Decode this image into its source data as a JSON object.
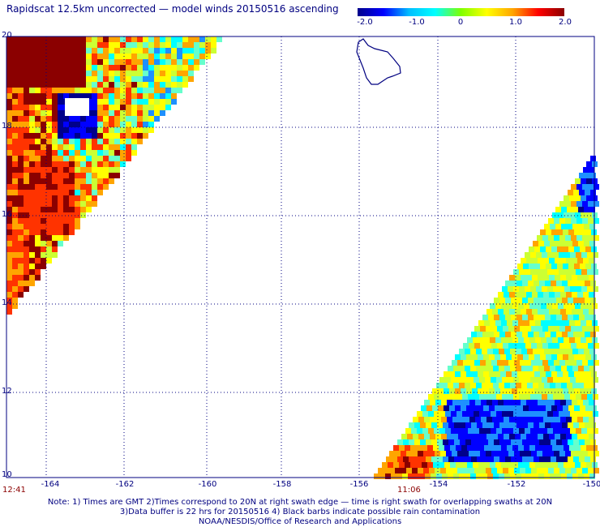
{
  "title": "Rapidscat 12.5km uncorrected — model winds 20150516 ascending",
  "colorbar": {
    "labels": [
      "-2.0",
      "-1.0",
      "0",
      "1.0",
      "2.0"
    ],
    "range": [
      -2.0,
      2.0
    ],
    "colors": [
      "#00008b",
      "#0000ff",
      "#00bfff",
      "#00ffff",
      "#7fff00",
      "#ffff00",
      "#ffa500",
      "#ff0000",
      "#8b0000"
    ]
  },
  "map": {
    "lat_range": [
      10,
      20
    ],
    "lon_range": [
      -165,
      -150
    ],
    "lat_labels": [
      "20",
      "18",
      "16",
      "14",
      "12",
      "10"
    ],
    "lon_labels": [
      "-164",
      "-162",
      "-160",
      "-158",
      "-156",
      "-154",
      "-152",
      "-150"
    ],
    "grid": "dotted",
    "land": "Hawaii (Big Island) outline, top-center"
  },
  "times": {
    "left_swath": "12:41",
    "right_swath": "11:06"
  },
  "notes": {
    "line1": "Note: 1) Times are GMT 2)Times correspond to 20N at right swath edge — time is right swath for overlapping swaths at 20N",
    "line2": "3)Data buffer is 22 hrs for 20150516 4) Black barbs indicate possible rain contamination",
    "line3": "NOAA/NESDIS/Office of Research and Applications"
  }
}
